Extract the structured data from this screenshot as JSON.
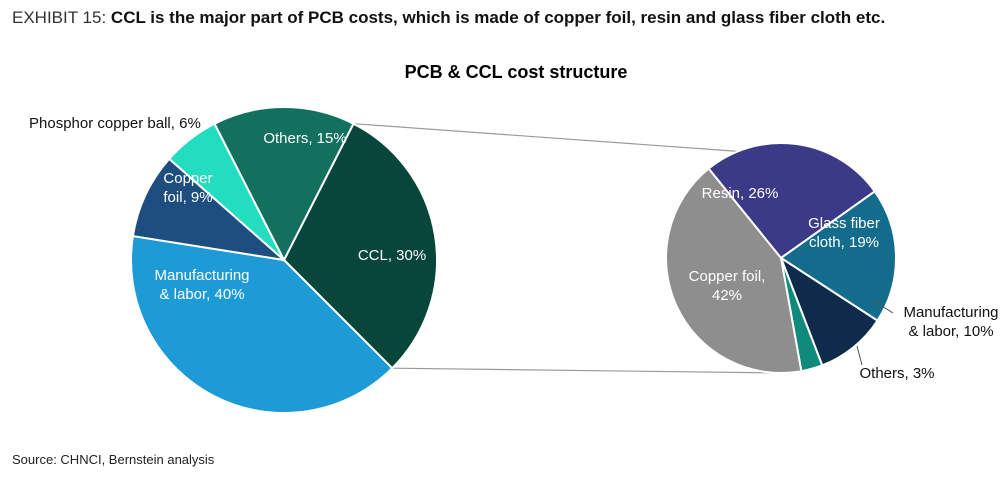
{
  "exhibit": {
    "number": "EXHIBIT 15:",
    "title": "CCL is the major part of PCB costs, which is made of copper foil, resin and glass fiber cloth etc."
  },
  "source": "Source: CHNCI, Bernstein analysis",
  "colors": {
    "ccl": "#08453b",
    "manufacturing": "#1e9ad6",
    "copper_foil_pcb": "#1e4d80",
    "phosphor": "#24dcc0",
    "others_pcb": "#13705e",
    "resin": "#3b3a87",
    "glass": "#146c8c",
    "manufacturing_ccl": "#0f2b4b",
    "others_ccl": "#0f8a7c",
    "copper_foil_ccl": "#8e8e8e",
    "connector": "#9a9a9a"
  },
  "chart_data": [
    {
      "type": "pie",
      "title": "PCB & CCL cost structure",
      "name": "PCB cost structure",
      "slices": [
        {
          "label": "CCL, 30%",
          "value": 30,
          "color_key": "ccl"
        },
        {
          "label": "Manufacturing & labor, 40%",
          "value": 40,
          "color_key": "manufacturing"
        },
        {
          "label": "Copper foil, 9%",
          "value": 9,
          "color_key": "copper_foil_pcb"
        },
        {
          "label": "Phosphor copper ball, 6%",
          "value": 6,
          "color_key": "phosphor"
        },
        {
          "label": "Others, 15%",
          "value": 15,
          "color_key": "others_pcb"
        }
      ]
    },
    {
      "type": "pie",
      "name": "CCL cost structure",
      "slices": [
        {
          "label": "Resin, 26%",
          "value": 26,
          "color_key": "resin"
        },
        {
          "label": "Glass fiber cloth, 19%",
          "value": 19,
          "color_key": "glass"
        },
        {
          "label": "Manufacturing & labor, 10%",
          "value": 10,
          "color_key": "manufacturing_ccl"
        },
        {
          "label": "Others, 3%",
          "value": 3,
          "color_key": "others_ccl"
        },
        {
          "label": "Copper foil, 42%",
          "value": 42,
          "color_key": "copper_foil_ccl"
        }
      ]
    }
  ]
}
